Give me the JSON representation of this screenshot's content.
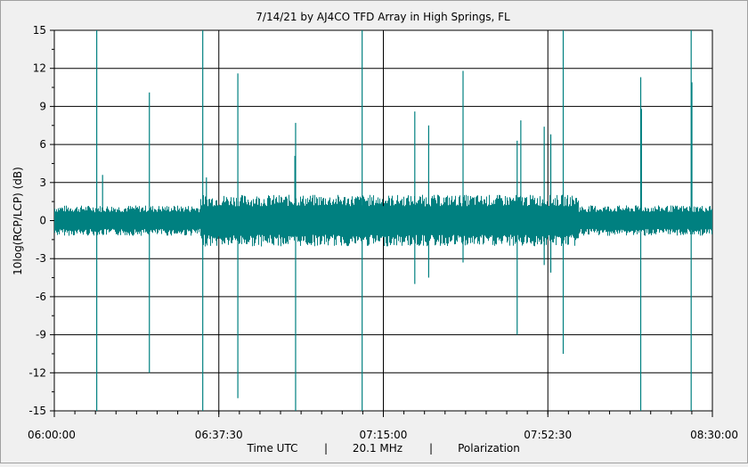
{
  "chart_data": {
    "type": "line",
    "title": "7/14/21  by  AJ4CO TFD Array  in  High Springs, FL",
    "xlabel_parts": [
      "Time UTC",
      "20.1 MHz",
      "Polarization"
    ],
    "ylabel": "10log(RCP/LCP) (dB)",
    "ylim": [
      -15,
      15
    ],
    "yticks": [
      15,
      12,
      9,
      6,
      3,
      0,
      -3,
      -6,
      -9,
      -12,
      -15
    ],
    "xlim": [
      "06:00:00",
      "08:30:00"
    ],
    "xticks": [
      "06:00:00",
      "06:37:30",
      "07:15:00",
      "07:52:30",
      "08:30:00"
    ],
    "grid": true,
    "line_color": "#008080",
    "series": [
      {
        "baseline_band": [
          -1.2,
          1.2
        ],
        "spikes": [
          {
            "t": "06:09:40",
            "min": -15,
            "max": 15
          },
          {
            "t": "06:11:00",
            "min": 0,
            "max": 3.6
          },
          {
            "t": "06:21:40",
            "min": -12,
            "max": 10.1
          },
          {
            "t": "06:33:50",
            "min": -15,
            "max": 15
          },
          {
            "t": "06:34:40",
            "min": 0,
            "max": 3.4
          },
          {
            "t": "06:41:50",
            "min": -14,
            "max": 11.6
          },
          {
            "t": "06:55:00",
            "min": -15,
            "max": 7.7
          },
          {
            "t": "06:54:50",
            "min": 0,
            "max": 5.1
          },
          {
            "t": "07:10:10",
            "min": -15,
            "max": 15
          },
          {
            "t": "07:22:10",
            "min": -5,
            "max": 8.6
          },
          {
            "t": "07:25:20",
            "min": -4.5,
            "max": 7.5
          },
          {
            "t": "07:33:10",
            "min": -3.3,
            "max": 11.8
          },
          {
            "t": "07:45:30",
            "min": -9,
            "max": 6.3
          },
          {
            "t": "07:46:20",
            "min": 0,
            "max": 7.9
          },
          {
            "t": "07:51:40",
            "min": -3.5,
            "max": 7.4
          },
          {
            "t": "07:53:10",
            "min": -4.1,
            "max": 6.8
          },
          {
            "t": "07:56:00",
            "min": -10.5,
            "max": 15
          },
          {
            "t": "08:13:40",
            "min": -15,
            "max": 11.3
          },
          {
            "t": "08:13:50",
            "min": 0,
            "max": 8.8
          },
          {
            "t": "08:25:10",
            "min": -15,
            "max": 15
          },
          {
            "t": "08:25:20",
            "min": 0,
            "max": 10.9
          }
        ]
      }
    ]
  }
}
